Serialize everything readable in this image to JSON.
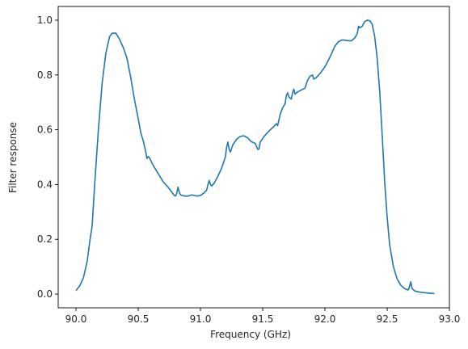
{
  "chart_data": {
    "type": "line",
    "title": "",
    "xlabel": "Frequency (GHz)",
    "ylabel": "Filter response",
    "xlim": [
      -0.1429,
      3.0
    ],
    "ylim": [
      -0.05,
      1.05
    ],
    "xticks": [
      0.0,
      0.5,
      1.0,
      1.5,
      2.0,
      2.5,
      3.0
    ],
    "xtick_labels": [
      "90.0",
      "90.5",
      "91.0",
      "91.5",
      "92.0",
      "92.5",
      "93.0"
    ],
    "yticks": [
      0.0,
      0.2,
      0.4,
      0.6,
      0.8,
      1.0
    ],
    "ytick_labels": [
      "0.0",
      "0.2",
      "0.4",
      "0.6",
      "0.8",
      "1.0"
    ],
    "x_offset_note": "",
    "grid": false,
    "legend": "none",
    "series": [
      {
        "color": "#1f77b4",
        "points": [
          [
            90.0,
            0.013
          ],
          [
            90.03,
            0.03
          ],
          [
            90.06,
            0.06
          ],
          [
            90.09,
            0.12
          ],
          [
            90.11,
            0.19
          ],
          [
            90.13,
            0.25
          ],
          [
            90.15,
            0.4
          ],
          [
            90.18,
            0.6
          ],
          [
            90.21,
            0.77
          ],
          [
            90.24,
            0.88
          ],
          [
            90.27,
            0.94
          ],
          [
            90.29,
            0.952
          ],
          [
            90.32,
            0.953
          ],
          [
            90.35,
            0.93
          ],
          [
            90.38,
            0.9
          ],
          [
            90.41,
            0.86
          ],
          [
            90.44,
            0.79
          ],
          [
            90.47,
            0.71
          ],
          [
            90.5,
            0.64
          ],
          [
            90.52,
            0.59
          ],
          [
            90.54,
            0.56
          ],
          [
            90.56,
            0.52
          ],
          [
            90.57,
            0.495
          ],
          [
            90.58,
            0.502
          ],
          [
            90.59,
            0.498
          ],
          [
            90.62,
            0.47
          ],
          [
            90.66,
            0.44
          ],
          [
            90.7,
            0.41
          ],
          [
            90.74,
            0.39
          ],
          [
            90.77,
            0.372
          ],
          [
            90.79,
            0.36
          ],
          [
            90.8,
            0.358
          ],
          [
            90.81,
            0.37
          ],
          [
            90.82,
            0.39
          ],
          [
            90.83,
            0.372
          ],
          [
            90.84,
            0.362
          ],
          [
            90.87,
            0.358
          ],
          [
            90.9,
            0.358
          ],
          [
            90.93,
            0.362
          ],
          [
            90.97,
            0.358
          ],
          [
            91.0,
            0.36
          ],
          [
            91.03,
            0.37
          ],
          [
            91.05,
            0.38
          ],
          [
            91.06,
            0.4
          ],
          [
            91.07,
            0.415
          ],
          [
            91.08,
            0.4
          ],
          [
            91.09,
            0.395
          ],
          [
            91.11,
            0.405
          ],
          [
            91.14,
            0.43
          ],
          [
            91.17,
            0.46
          ],
          [
            91.2,
            0.5
          ],
          [
            91.21,
            0.535
          ],
          [
            91.22,
            0.555
          ],
          [
            91.23,
            0.53
          ],
          [
            91.24,
            0.518
          ],
          [
            91.26,
            0.545
          ],
          [
            91.29,
            0.565
          ],
          [
            91.32,
            0.576
          ],
          [
            91.35,
            0.578
          ],
          [
            91.38,
            0.57
          ],
          [
            91.41,
            0.556
          ],
          [
            91.44,
            0.55
          ],
          [
            91.45,
            0.54
          ],
          [
            91.46,
            0.528
          ],
          [
            91.47,
            0.53
          ],
          [
            91.48,
            0.555
          ],
          [
            91.51,
            0.575
          ],
          [
            91.55,
            0.595
          ],
          [
            91.59,
            0.612
          ],
          [
            91.61,
            0.622
          ],
          [
            91.62,
            0.615
          ],
          [
            91.64,
            0.655
          ],
          [
            91.66,
            0.68
          ],
          [
            91.68,
            0.695
          ],
          [
            91.69,
            0.725
          ],
          [
            91.7,
            0.735
          ],
          [
            91.71,
            0.72
          ],
          [
            91.73,
            0.712
          ],
          [
            91.74,
            0.735
          ],
          [
            91.75,
            0.748
          ],
          [
            91.76,
            0.73
          ],
          [
            91.78,
            0.738
          ],
          [
            91.81,
            0.745
          ],
          [
            91.84,
            0.752
          ],
          [
            91.86,
            0.78
          ],
          [
            91.88,
            0.795
          ],
          [
            91.9,
            0.8
          ],
          [
            91.91,
            0.785
          ],
          [
            91.93,
            0.79
          ],
          [
            91.96,
            0.805
          ],
          [
            92.0,
            0.83
          ],
          [
            92.04,
            0.865
          ],
          [
            92.08,
            0.905
          ],
          [
            92.11,
            0.922
          ],
          [
            92.14,
            0.928
          ],
          [
            92.17,
            0.926
          ],
          [
            92.21,
            0.924
          ],
          [
            92.24,
            0.935
          ],
          [
            92.26,
            0.952
          ],
          [
            92.27,
            0.978
          ],
          [
            92.28,
            0.972
          ],
          [
            92.3,
            0.978
          ],
          [
            92.32,
            0.995
          ],
          [
            92.34,
            1.0
          ],
          [
            92.36,
            0.998
          ],
          [
            92.38,
            0.985
          ],
          [
            92.4,
            0.94
          ],
          [
            92.42,
            0.86
          ],
          [
            92.44,
            0.74
          ],
          [
            92.46,
            0.58
          ],
          [
            92.48,
            0.41
          ],
          [
            92.5,
            0.28
          ],
          [
            92.52,
            0.18
          ],
          [
            92.55,
            0.1
          ],
          [
            92.58,
            0.055
          ],
          [
            92.61,
            0.032
          ],
          [
            92.64,
            0.02
          ],
          [
            92.67,
            0.015
          ],
          [
            92.68,
            0.028
          ],
          [
            92.69,
            0.045
          ],
          [
            92.7,
            0.02
          ],
          [
            92.72,
            0.012
          ],
          [
            92.75,
            0.008
          ],
          [
            92.8,
            0.005
          ],
          [
            92.85,
            0.003
          ],
          [
            92.88,
            0.002
          ]
        ]
      }
    ]
  }
}
